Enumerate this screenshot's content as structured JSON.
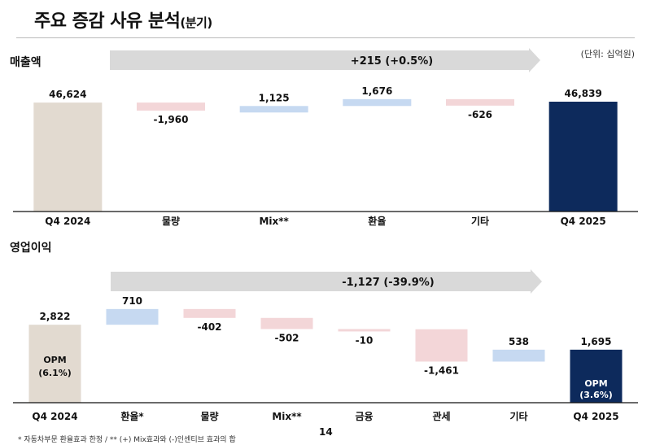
{
  "page": {
    "title_main": "주요 증감 사유 분석",
    "title_suffix": "(분기)",
    "unit": "(단위: 십억원)",
    "footnote": "* 자동차부문 환율효과 한정 / ** (+) Mix효과와 (-)인센티브 효과의 합",
    "page_number": "14"
  },
  "chart_data": [
    {
      "type": "bar",
      "title": "매출액",
      "summary": "+215 (+0.5%)",
      "categories": [
        "Q4 2024",
        "물량",
        "Mix**",
        "환율",
        "기타",
        "Q4 2025"
      ],
      "values": [
        46624,
        -1960,
        1125,
        1676,
        -626,
        46839
      ],
      "labels": [
        "46,624",
        "-1,960",
        "1,125",
        "1,676",
        "-626",
        "46,839"
      ],
      "start_bar_text": [],
      "end_bar_text": []
    },
    {
      "type": "bar",
      "title": "영업이익",
      "summary": "-1,127 (-39.9%)",
      "categories": [
        "Q4 2024",
        "환율*",
        "물량",
        "Mix**",
        "금융",
        "관세",
        "기타",
        "Q4 2025"
      ],
      "values": [
        2822,
        710,
        -402,
        -502,
        -10,
        -1461,
        538,
        1695
      ],
      "labels": [
        "2,822",
        "710",
        "-402",
        "-502",
        "-10",
        "-1,461",
        "538",
        "1,695"
      ],
      "start_bar_text": [
        "OPM",
        "(6.1%)"
      ],
      "end_bar_text": [
        "OPM",
        "(3.6%)"
      ]
    }
  ],
  "colors": {
    "start": "#e2dad0",
    "end": "#0d2a5c",
    "increase": "#c6d9f1",
    "decrease": "#f3d6d8",
    "arrow": "#d9d9d9"
  }
}
